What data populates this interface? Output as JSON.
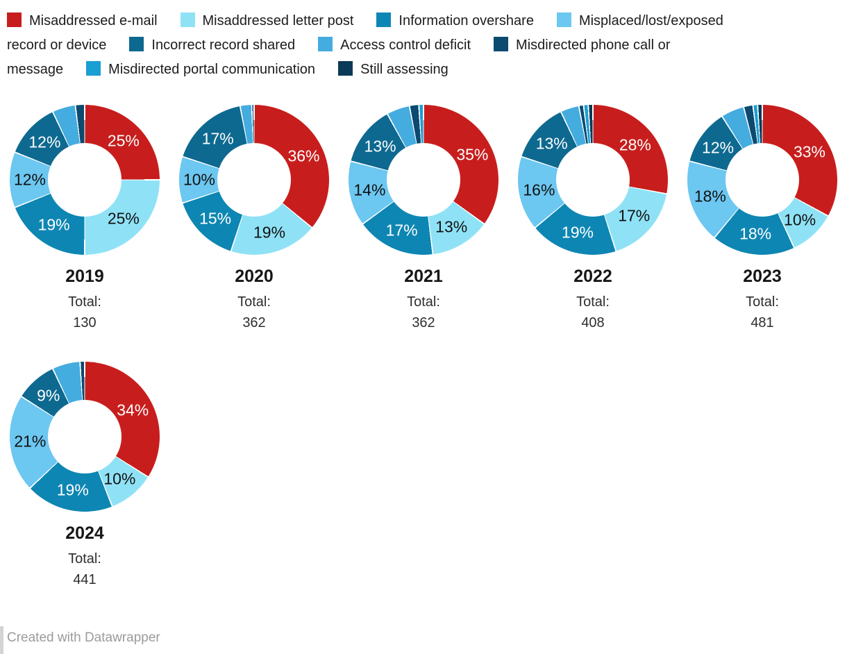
{
  "palette": {
    "email": "#c71e1d",
    "letter": "#8fe2f6",
    "overshare": "#0e86b3",
    "misplaced": "#6cc7f1",
    "incorrect": "#0e6990",
    "access": "#45acdf",
    "phone": "#0c4a70",
    "portal": "#1a9fd4",
    "assessing": "#0b3a59"
  },
  "legend": {
    "rows": [
      [
        {
          "color": "email",
          "text": "Misaddressed e-mail"
        },
        {
          "color": "letter",
          "text": "Misaddressed letter post"
        },
        {
          "color": "overshare",
          "text": "Information overshare"
        },
        {
          "color": "misplaced",
          "text": "Misplaced/lost/exposed"
        }
      ],
      [
        {
          "color": null,
          "text": "record or device"
        },
        {
          "color": "incorrect",
          "text": "Incorrect record shared"
        },
        {
          "color": "access",
          "text": "Access control deficit"
        },
        {
          "color": "phone",
          "text": "Misdirected phone call or"
        }
      ],
      [
        {
          "color": null,
          "text": "message"
        },
        {
          "color": "portal",
          "text": "Misdirected portal communication"
        },
        {
          "color": "assessing",
          "text": "Still assessing"
        }
      ]
    ]
  },
  "chart_data": {
    "type": "pie",
    "variant": "donut-small-multiples",
    "categories": [
      {
        "label": "Misaddressed e-mail",
        "color": "email",
        "label_color": "#ffffff"
      },
      {
        "label": "Misaddressed letter post",
        "color": "letter",
        "label_color": "#111111"
      },
      {
        "label": "Information overshare",
        "color": "overshare",
        "label_color": "#ffffff"
      },
      {
        "label": "Misplaced/lost/exposed record or device",
        "color": "misplaced",
        "label_color": "#111111"
      },
      {
        "label": "Incorrect record shared",
        "color": "incorrect",
        "label_color": "#ffffff"
      },
      {
        "label": "Access control deficit",
        "color": "access",
        "label_color": "#111111"
      },
      {
        "label": "Misdirected phone call or message",
        "color": "phone",
        "label_color": "#ffffff"
      },
      {
        "label": "Misdirected portal communication",
        "color": "portal",
        "label_color": "#ffffff"
      },
      {
        "label": "Still assessing",
        "color": "assessing",
        "label_color": "#ffffff"
      }
    ],
    "total_label": "Total:",
    "label_threshold": 9,
    "years": [
      {
        "year": "2019",
        "total": "130",
        "values": [
          25,
          25,
          19,
          12,
          12,
          5,
          2,
          0,
          0
        ]
      },
      {
        "year": "2020",
        "total": "362",
        "values": [
          36,
          19,
          15,
          10,
          17,
          2.5,
          0.5,
          0,
          0
        ]
      },
      {
        "year": "2021",
        "total": "362",
        "values": [
          35,
          13,
          17,
          14,
          13,
          5,
          2,
          1,
          0
        ]
      },
      {
        "year": "2022",
        "total": "408",
        "values": [
          28,
          17,
          19,
          16,
          13,
          4,
          1,
          1,
          1
        ]
      },
      {
        "year": "2023",
        "total": "481",
        "values": [
          33,
          10,
          18,
          18,
          12,
          5,
          2,
          1,
          1
        ]
      },
      {
        "year": "2024",
        "total": "441",
        "values": [
          34,
          10,
          19,
          21,
          9,
          6,
          1,
          0,
          0
        ]
      }
    ]
  },
  "footer": {
    "attribution": "Created with Datawrapper"
  }
}
